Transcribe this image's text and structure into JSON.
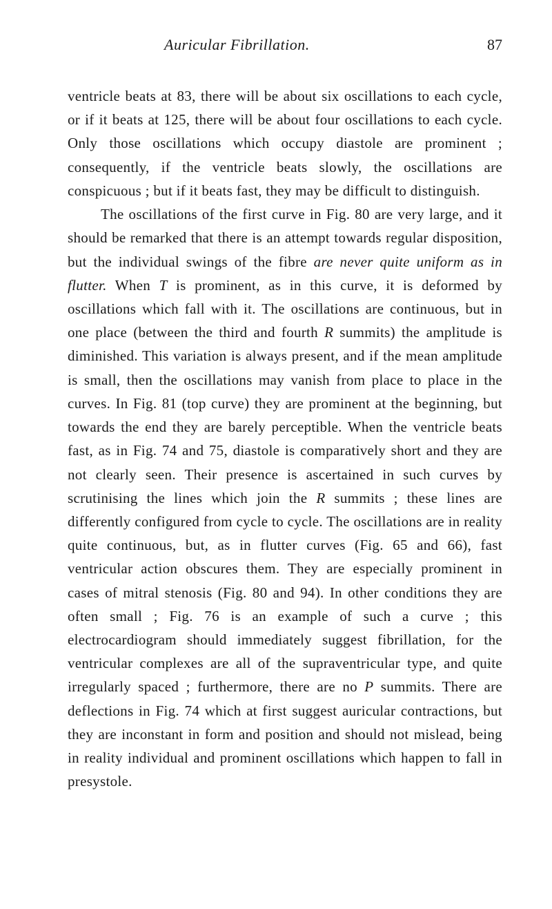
{
  "header": {
    "title": "Auricular Fibrillation.",
    "pageNumber": "87"
  },
  "paragraphs": {
    "p1": {
      "text": "ventricle beats at 83, there will be about six oscillations to each cycle, or if it beats at 125, there will be about four oscillations to each cycle. Only those oscillations which occupy diastole are prominent ; consequently, if the ventricle beats slowly, the oscillations are conspicuous ; but if it beats fast, they may be difficult to distinguish."
    },
    "p2": {
      "part1": "The oscillations of the first curve in Fig. 80 are very large, and it should be remarked that there is an attempt towards regular disposition, but the individual swings of the fibre ",
      "italic1": "are never quite uniform as in flutter.",
      "part2": " When ",
      "italic2": "T",
      "part3": " is prominent, as in this curve, it is deformed by oscillations which fall with it. The oscillations are continuous, but in one place (between the third and fourth ",
      "italic3": "R",
      "part4": " summits) the amplitude is diminished. This variation is always present, and if the mean amplitude is small, then the oscillations may vanish from place to place in the curves. In Fig. 81 (top curve) they are prominent at the beginning, but towards the end they are barely perceptible. When the ventricle beats fast, as in Fig. 74 and 75, diastole is comparatively short and they are not clearly seen. Their presence is ascertained in such curves by scrutinising the lines which join the ",
      "italic4": "R",
      "part5": " summits ; these lines are differently configured from cycle to cycle. The oscillations are in reality quite continuous, but, as in flutter curves (Fig. 65 and 66), fast ventricular action obscures them. They are especially prominent in cases of mitral stenosis (Fig. 80 and 94). In other conditions they are often small ; Fig. 76 is an example of such a curve ; this electrocardiogram should immediately suggest fibrillation, for the ventricular complexes are all of the supraventricular type, and quite irregularly spaced ; furthermore, there are no ",
      "italic5": "P",
      "part6": " summits. There are deflections in Fig. 74 which at first suggest auricular contractions, but they are inconstant in form and position and should not mislead, being in reality individual and prominent oscillations which happen to fall in presystole."
    }
  }
}
